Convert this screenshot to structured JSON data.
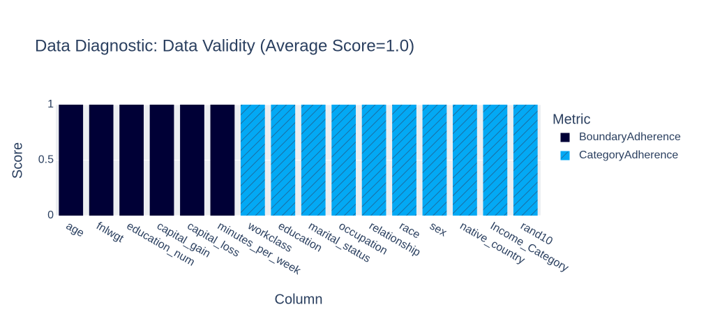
{
  "chart_data": {
    "type": "bar",
    "title": "Data Diagnostic: Data Validity (Average Score=1.0)",
    "x_label": "Column",
    "y_label": "Score",
    "legend_title": "Metric",
    "categories": [
      "age",
      "fnlwgt",
      "education_num",
      "capital_gain",
      "capital_loss",
      "minutes_per_week",
      "workclass",
      "education",
      "marital_status",
      "occupation",
      "relationship",
      "race",
      "sex",
      "native_country",
      "Income_Category",
      "rand10"
    ],
    "series": [
      {
        "name": "BoundaryAdherence",
        "color": "#000036",
        "values": [
          1,
          1,
          1,
          1,
          1,
          1,
          null,
          null,
          null,
          null,
          null,
          null,
          null,
          null,
          null,
          null
        ]
      },
      {
        "name": "CategoryAdherence",
        "color": "#03a9f4",
        "pattern": "hatch",
        "values": [
          null,
          null,
          null,
          null,
          null,
          null,
          1,
          1,
          1,
          1,
          1,
          1,
          1,
          1,
          1,
          1
        ]
      }
    ],
    "ylim": [
      0,
      1
    ],
    "yticks": [
      0,
      0.5,
      1
    ],
    "grid": true,
    "legend": "right"
  }
}
